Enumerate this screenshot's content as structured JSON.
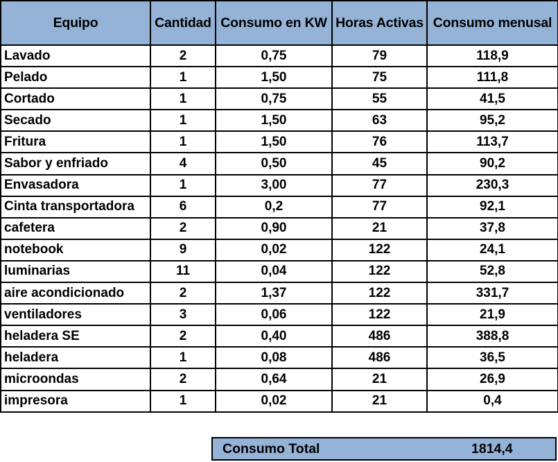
{
  "table": {
    "headers": [
      "Equipo",
      "Cantidad",
      "Consumo en KW",
      "Horas Activas",
      "Consumo menusal"
    ],
    "rows": [
      [
        "Lavado",
        "2",
        "0,75",
        "79",
        "118,9"
      ],
      [
        "Pelado",
        "1",
        "1,50",
        "75",
        "111,8"
      ],
      [
        "Cortado",
        "1",
        "0,75",
        "55",
        "41,5"
      ],
      [
        "Secado",
        "1",
        "1,50",
        "63",
        "95,2"
      ],
      [
        "Fritura",
        "1",
        "1,50",
        "76",
        "113,7"
      ],
      [
        "Sabor y enfriado",
        "4",
        "0,50",
        "45",
        "90,2"
      ],
      [
        "Envasadora",
        "1",
        "3,00",
        "77",
        "230,3"
      ],
      [
        "Cinta transportadora",
        "6",
        "0,2",
        "77",
        "92,1"
      ],
      [
        "cafetera",
        "2",
        "0,90",
        "21",
        "37,8"
      ],
      [
        "notebook",
        "9",
        "0,02",
        "122",
        "24,1"
      ],
      [
        "luminarias",
        "11",
        "0,04",
        "122",
        "52,8"
      ],
      [
        "aire acondicionado",
        "2",
        "1,37",
        "122",
        "331,7"
      ],
      [
        "ventiladores",
        "3",
        "0,06",
        "122",
        "21,9"
      ],
      [
        "heladera SE",
        "2",
        "0,40",
        "486",
        "388,8"
      ],
      [
        "heladera",
        "1",
        "0,08",
        "486",
        "36,5"
      ],
      [
        "microondas",
        "2",
        "0,64",
        "21",
        "26,9"
      ],
      [
        "impresora",
        "1",
        "0,02",
        "21",
        "0,4"
      ]
    ]
  },
  "total": {
    "label": "Consumo Total",
    "value": "1814,4"
  },
  "colors": {
    "header_fill": "#95b3d7",
    "border": "#000000"
  }
}
